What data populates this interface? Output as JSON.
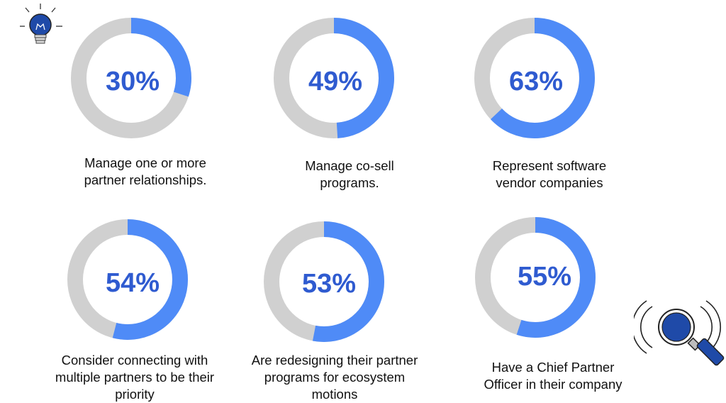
{
  "colors": {
    "accent": "#4f8bf7",
    "track": "#d0d0d0",
    "percent_text": "#2f5bd0",
    "dark_blue": "#1f4aa8",
    "icon_line": "#333333"
  },
  "icons": {
    "top_left": "lightbulb-icon",
    "bottom_right": "magnifying-glass-icon"
  },
  "chart_data": [
    {
      "type": "pie",
      "value": 30,
      "label": "30%",
      "caption": "Manage one or more\npartner relationships."
    },
    {
      "type": "pie",
      "value": 49,
      "label": "49%",
      "caption": "Manage co-sell\nprograms."
    },
    {
      "type": "pie",
      "value": 63,
      "label": "63%",
      "caption": "Represent software\nvendor companies"
    },
    {
      "type": "pie",
      "value": 54,
      "label": "54%",
      "caption": "Consider connecting with\nmultiple partners to be their\npriority"
    },
    {
      "type": "pie",
      "value": 53,
      "label": "53%",
      "caption": "Are redesigning their partner\nprograms for ecosystem\nmotions"
    },
    {
      "type": "pie",
      "value": 55,
      "label": "55%",
      "caption": "Have a Chief Partner\nOfficer in their company"
    }
  ]
}
